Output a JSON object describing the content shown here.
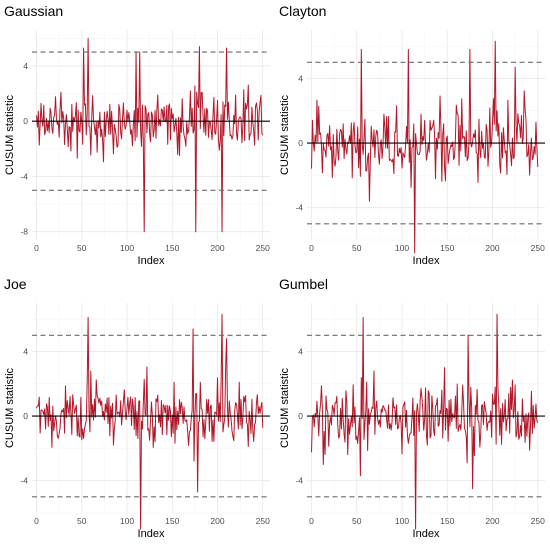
{
  "colors": {
    "series": "#b2182b",
    "threshold": "#6b6b6b",
    "zero": "#000000"
  },
  "chart_data": [
    {
      "type": "line",
      "title": "Gaussian",
      "xlabel": "Index",
      "ylabel": "CUSUM statistic",
      "xlim": [
        -5,
        258
      ],
      "ylim": [
        -8.6,
        6.6
      ],
      "xticks": [
        0,
        50,
        100,
        150,
        200,
        250
      ],
      "yticks": [
        -8,
        -4,
        0,
        4
      ],
      "thresholds": [
        5,
        -5
      ],
      "grid": true,
      "n": 250,
      "seed": 11,
      "spikes": [
        [
          52,
          5.3
        ],
        [
          57,
          6.0
        ],
        [
          110,
          5.0
        ],
        [
          114,
          5.0
        ],
        [
          119,
          -8.0
        ],
        [
          176,
          -8.0
        ],
        [
          180,
          5.4
        ],
        [
          205,
          -8.0
        ],
        [
          210,
          5.3
        ]
      ]
    },
    {
      "type": "line",
      "title": "Clayton",
      "xlabel": "Index",
      "ylabel": "CUSUM statistic",
      "xlim": [
        -5,
        258
      ],
      "ylim": [
        -6.0,
        7.0
      ],
      "xticks": [
        0,
        50,
        100,
        150,
        200,
        250
      ],
      "yticks": [
        -4,
        0,
        4
      ],
      "thresholds": [
        5,
        -5
      ],
      "grid": true,
      "n": 250,
      "seed": 23,
      "spikes": [
        [
          55,
          5.8
        ],
        [
          64,
          -3.6
        ],
        [
          107,
          5.8
        ],
        [
          114,
          -6.8
        ],
        [
          175,
          5.8
        ],
        [
          203,
          6.3
        ],
        [
          225,
          4.7
        ]
      ]
    },
    {
      "type": "line",
      "title": "Joe",
      "xlabel": "Index",
      "ylabel": "CUSUM statistic",
      "xlim": [
        -5,
        258
      ],
      "ylim": [
        -6.0,
        7.0
      ],
      "xticks": [
        0,
        50,
        100,
        150,
        200,
        250
      ],
      "yticks": [
        -4,
        0,
        4
      ],
      "thresholds": [
        5,
        -5
      ],
      "grid": true,
      "n": 250,
      "seed": 37,
      "spikes": [
        [
          57,
          6.1
        ],
        [
          115,
          -7.0
        ],
        [
          173,
          5.4
        ],
        [
          178,
          -4.7
        ],
        [
          205,
          6.3
        ],
        [
          210,
          4.8
        ]
      ]
    },
    {
      "type": "line",
      "title": "Gumbel",
      "xlabel": "Index",
      "ylabel": "CUSUM statistic",
      "xlim": [
        -5,
        258
      ],
      "ylim": [
        -6.0,
        7.0
      ],
      "xticks": [
        0,
        50,
        100,
        150,
        200,
        250
      ],
      "yticks": [
        -4,
        0,
        4
      ],
      "thresholds": [
        5,
        -5
      ],
      "grid": true,
      "n": 250,
      "seed": 51,
      "spikes": [
        [
          57,
          6.1
        ],
        [
          115,
          -7.0
        ],
        [
          173,
          5.0
        ],
        [
          178,
          -4.5
        ],
        [
          205,
          6.3
        ]
      ]
    }
  ]
}
